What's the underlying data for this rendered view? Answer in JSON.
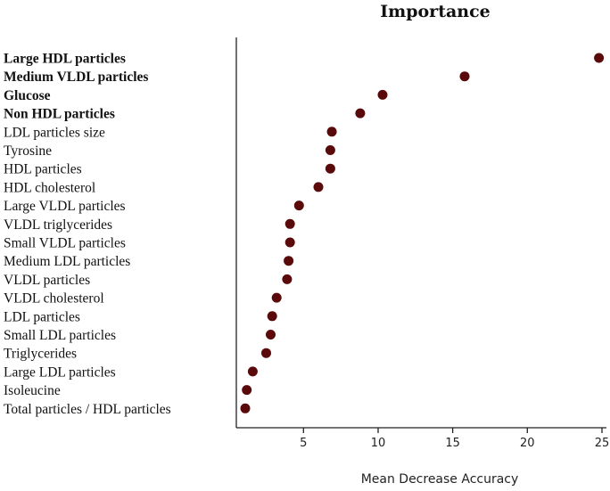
{
  "chart_data": {
    "type": "scatter",
    "title": "Importance",
    "xlabel": "Mean Decrease Accuracy",
    "ylabel": "",
    "xlim": [
      0.5,
      25.3
    ],
    "xticks": [
      5,
      10,
      15,
      20,
      25
    ],
    "grid": false,
    "legend": "none",
    "point_color": "#5a0a0a",
    "categories": [
      "Large HDL particles",
      "Medium VLDL particles",
      "Glucose",
      "Non HDL particles",
      "LDL particles size",
      "Tyrosine",
      "HDL particles",
      "HDL cholesterol",
      "Large VLDL particles",
      "VLDL triglycerides",
      "Small VLDL particles",
      "Medium LDL particles",
      "VLDL particles",
      "VLDL cholesterol",
      "LDL particles",
      "Small LDL particles",
      "Triglycerides",
      "Large LDL particles",
      "Isoleucine",
      "Total particles / HDL particles"
    ],
    "bold_categories": [
      "Large HDL particles",
      "Medium VLDL particles",
      "Glucose",
      "Non HDL particles"
    ],
    "values": [
      24.8,
      15.8,
      10.3,
      8.8,
      6.9,
      6.8,
      6.8,
      6.0,
      4.7,
      4.1,
      4.1,
      4.0,
      3.9,
      3.2,
      2.9,
      2.8,
      2.5,
      1.6,
      1.2,
      1.1
    ]
  }
}
